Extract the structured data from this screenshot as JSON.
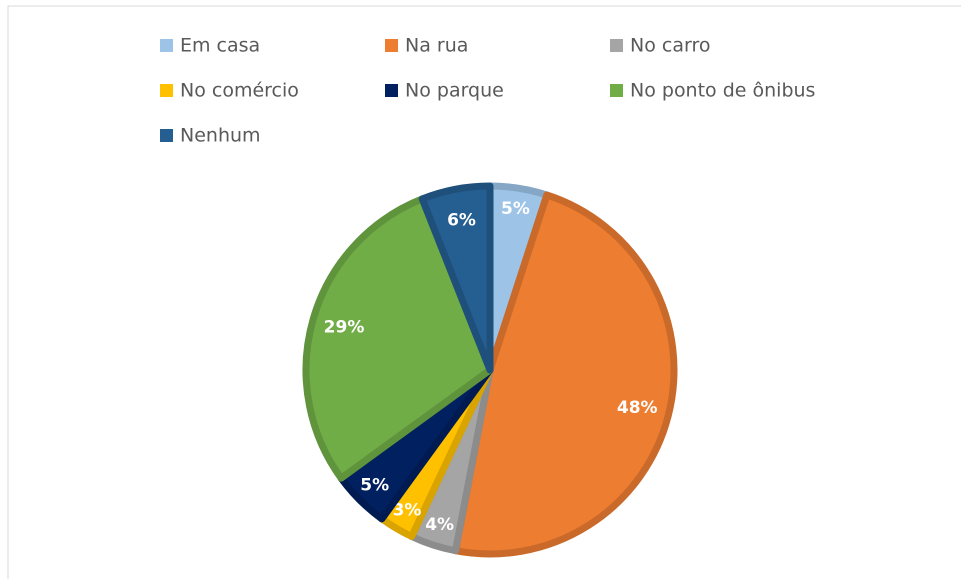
{
  "chart_data": {
    "type": "pie",
    "categories": [
      "Em casa",
      "Na rua",
      "No carro",
      "No comércio",
      "No parque",
      "No ponto de ônibus",
      "Nenhum"
    ],
    "values": [
      5,
      48,
      4,
      3,
      5,
      29,
      6
    ],
    "value_labels": [
      "5%",
      "48%",
      "4%",
      "3%",
      "5%",
      "29%",
      "6%"
    ],
    "colors": [
      "#9dc3e6",
      "#ed7d31",
      "#a5a5a5",
      "#ffc000",
      "#002060",
      "#70ad47",
      "#255e91"
    ],
    "legend": "top"
  }
}
